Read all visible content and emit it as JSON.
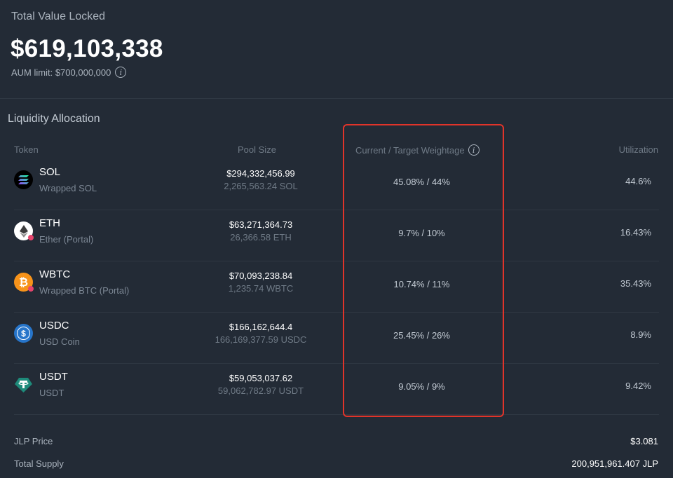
{
  "tvl": {
    "title": "Total Value Locked",
    "value": "$619,103,338",
    "aum_limit": "AUM limit: $700,000,000"
  },
  "allocation": {
    "title": "Liquidity Allocation",
    "headers": {
      "token": "Token",
      "pool_size": "Pool Size",
      "weightage": "Current / Target Weightage",
      "utilization": "Utilization"
    },
    "rows": [
      {
        "symbol": "SOL",
        "name": "Wrapped SOL",
        "pool_usd": "$294,332,456.99",
        "pool_amount": "2,265,563.24 SOL",
        "weightage": "45.08% / 44%",
        "utilization": "44.6%",
        "icon": "sol-icon"
      },
      {
        "symbol": "ETH",
        "name": "Ether (Portal)",
        "pool_usd": "$63,271,364.73",
        "pool_amount": "26,366.58 ETH",
        "weightage": "9.7% / 10%",
        "utilization": "16.43%",
        "icon": "eth-icon"
      },
      {
        "symbol": "WBTC",
        "name": "Wrapped BTC (Portal)",
        "pool_usd": "$70,093,238.84",
        "pool_amount": "1,235.74 WBTC",
        "weightage": "10.74% / 11%",
        "utilization": "35.43%",
        "icon": "btc-icon"
      },
      {
        "symbol": "USDC",
        "name": "USD Coin",
        "pool_usd": "$166,162,644.4",
        "pool_amount": "166,169,377.59 USDC",
        "weightage": "25.45% / 26%",
        "utilization": "8.9%",
        "icon": "usdc-icon"
      },
      {
        "symbol": "USDT",
        "name": "USDT",
        "pool_usd": "$59,053,037.62",
        "pool_amount": "59,062,782.97 USDT",
        "weightage": "9.05% / 9%",
        "utilization": "9.42%",
        "icon": "usdt-icon"
      }
    ]
  },
  "footer": {
    "jlp_price_label": "JLP Price",
    "jlp_price_value": "$3.081",
    "total_supply_label": "Total Supply",
    "total_supply_value": "200,951,961.407 JLP"
  },
  "colors": {
    "background": "#232b36",
    "highlight": "#e0342a"
  }
}
